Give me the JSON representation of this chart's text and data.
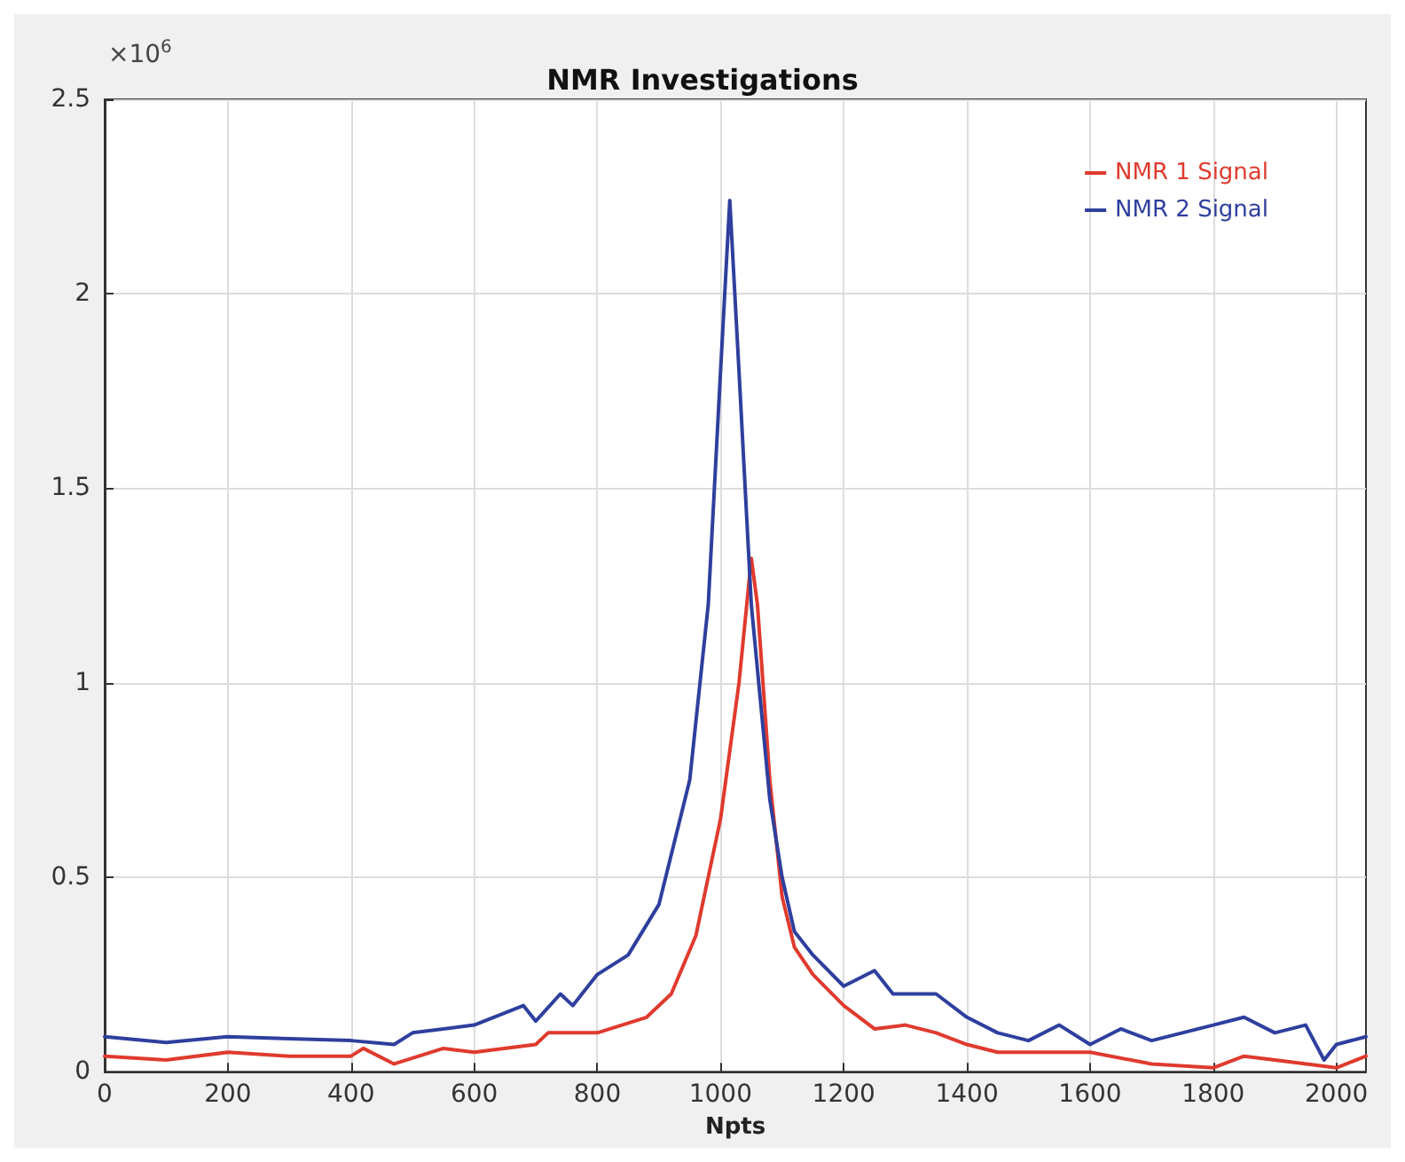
{
  "chart_data": {
    "type": "line",
    "title": "NMR Investigations",
    "xlabel": "Npts",
    "annotations": [
      "×10$^{6}$"
    ],
    "xlim": [
      0,
      2048
    ],
    "xticks": [
      0,
      200,
      400,
      600,
      800,
      1000,
      1200,
      1400,
      1600,
      1800,
      2000
    ],
    "ylim": [
      0,
      2.5
    ],
    "yticks": [
      0,
      0.5,
      1,
      1.5,
      2,
      2.5
    ],
    "grid": true,
    "legend": "top right",
    "marker": "none",
    "line_style": "solid",
    "series": [
      {
        "name": "NMR 1 Signal",
        "color": "#e03a2e",
        "x": [
          0,
          100,
          200,
          300,
          400,
          420,
          470,
          550,
          600,
          700,
          720,
          800,
          880,
          920,
          960,
          1000,
          1030,
          1050,
          1060,
          1080,
          1100,
          1120,
          1150,
          1200,
          1250,
          1300,
          1350,
          1400,
          1450,
          1500,
          1600,
          1700,
          1800,
          1850,
          1900,
          2000,
          2048
        ],
        "values": [
          0.04,
          0.03,
          0.05,
          0.04,
          0.04,
          0.06,
          0.02,
          0.06,
          0.05,
          0.07,
          0.1,
          0.1,
          0.14,
          0.2,
          0.35,
          0.65,
          1.0,
          1.32,
          1.2,
          0.75,
          0.45,
          0.32,
          0.25,
          0.17,
          0.11,
          0.12,
          0.1,
          0.07,
          0.05,
          0.05,
          0.05,
          0.02,
          0.01,
          0.04,
          0.03,
          0.01,
          0.04
        ]
      },
      {
        "name": "NMR 2 Signal",
        "color": "#2e3f9e",
        "x": [
          0,
          100,
          200,
          300,
          400,
          470,
          500,
          600,
          680,
          700,
          740,
          760,
          800,
          850,
          900,
          950,
          980,
          1000,
          1015,
          1030,
          1050,
          1080,
          1100,
          1120,
          1150,
          1200,
          1250,
          1280,
          1350,
          1400,
          1450,
          1500,
          1550,
          1600,
          1650,
          1700,
          1800,
          1850,
          1900,
          1950,
          1980,
          2000,
          2048
        ],
        "values": [
          0.09,
          0.075,
          0.09,
          0.085,
          0.08,
          0.07,
          0.1,
          0.12,
          0.17,
          0.13,
          0.2,
          0.17,
          0.25,
          0.3,
          0.43,
          0.75,
          1.2,
          1.8,
          2.24,
          1.8,
          1.2,
          0.7,
          0.5,
          0.36,
          0.3,
          0.22,
          0.26,
          0.2,
          0.2,
          0.14,
          0.1,
          0.08,
          0.12,
          0.07,
          0.11,
          0.08,
          0.12,
          0.14,
          0.1,
          0.12,
          0.03,
          0.07,
          0.09
        ]
      }
    ]
  }
}
